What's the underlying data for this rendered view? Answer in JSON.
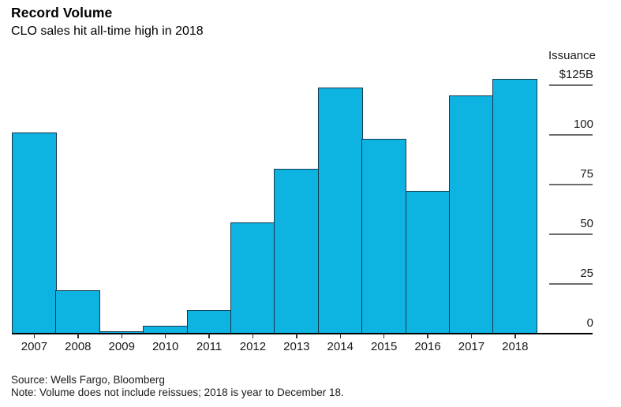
{
  "header": {
    "title": "Record Volume",
    "subtitle": "CLO sales hit all-time high in 2018"
  },
  "chart_data": {
    "type": "bar",
    "title": "Record Volume",
    "subtitle": "CLO sales hit all-time high in 2018",
    "unit": "USD billions",
    "categories": [
      "2007",
      "2008",
      "2009",
      "2010",
      "2011",
      "2012",
      "2013",
      "2014",
      "2015",
      "2016",
      "2017",
      "2018"
    ],
    "values": [
      101,
      22,
      1,
      4,
      12,
      56,
      83,
      124,
      98,
      72,
      120,
      128
    ],
    "xlabel": "",
    "ylabel": "Issuance",
    "ylim": [
      0,
      130
    ],
    "grid": false,
    "legend": "none",
    "y_axis": {
      "title": "Issuance",
      "side": "right",
      "ticks": [
        {
          "label": "$125B",
          "value": 125
        },
        {
          "label": "100",
          "value": 100
        },
        {
          "label": "75",
          "value": 75
        },
        {
          "label": "50",
          "value": 50
        },
        {
          "label": "25",
          "value": 25
        },
        {
          "label": "0",
          "value": 0
        }
      ]
    },
    "colors": {
      "bar_fill": "#0db4e2",
      "bar_outline": "#17384d",
      "axis_line": "#000000",
      "tick_line": "#6b6b6b"
    }
  },
  "footer": {
    "source": "Source: Wells Fargo, Bloomberg",
    "note": "Note: Volume does not include reissues; 2018 is year to December 18."
  }
}
